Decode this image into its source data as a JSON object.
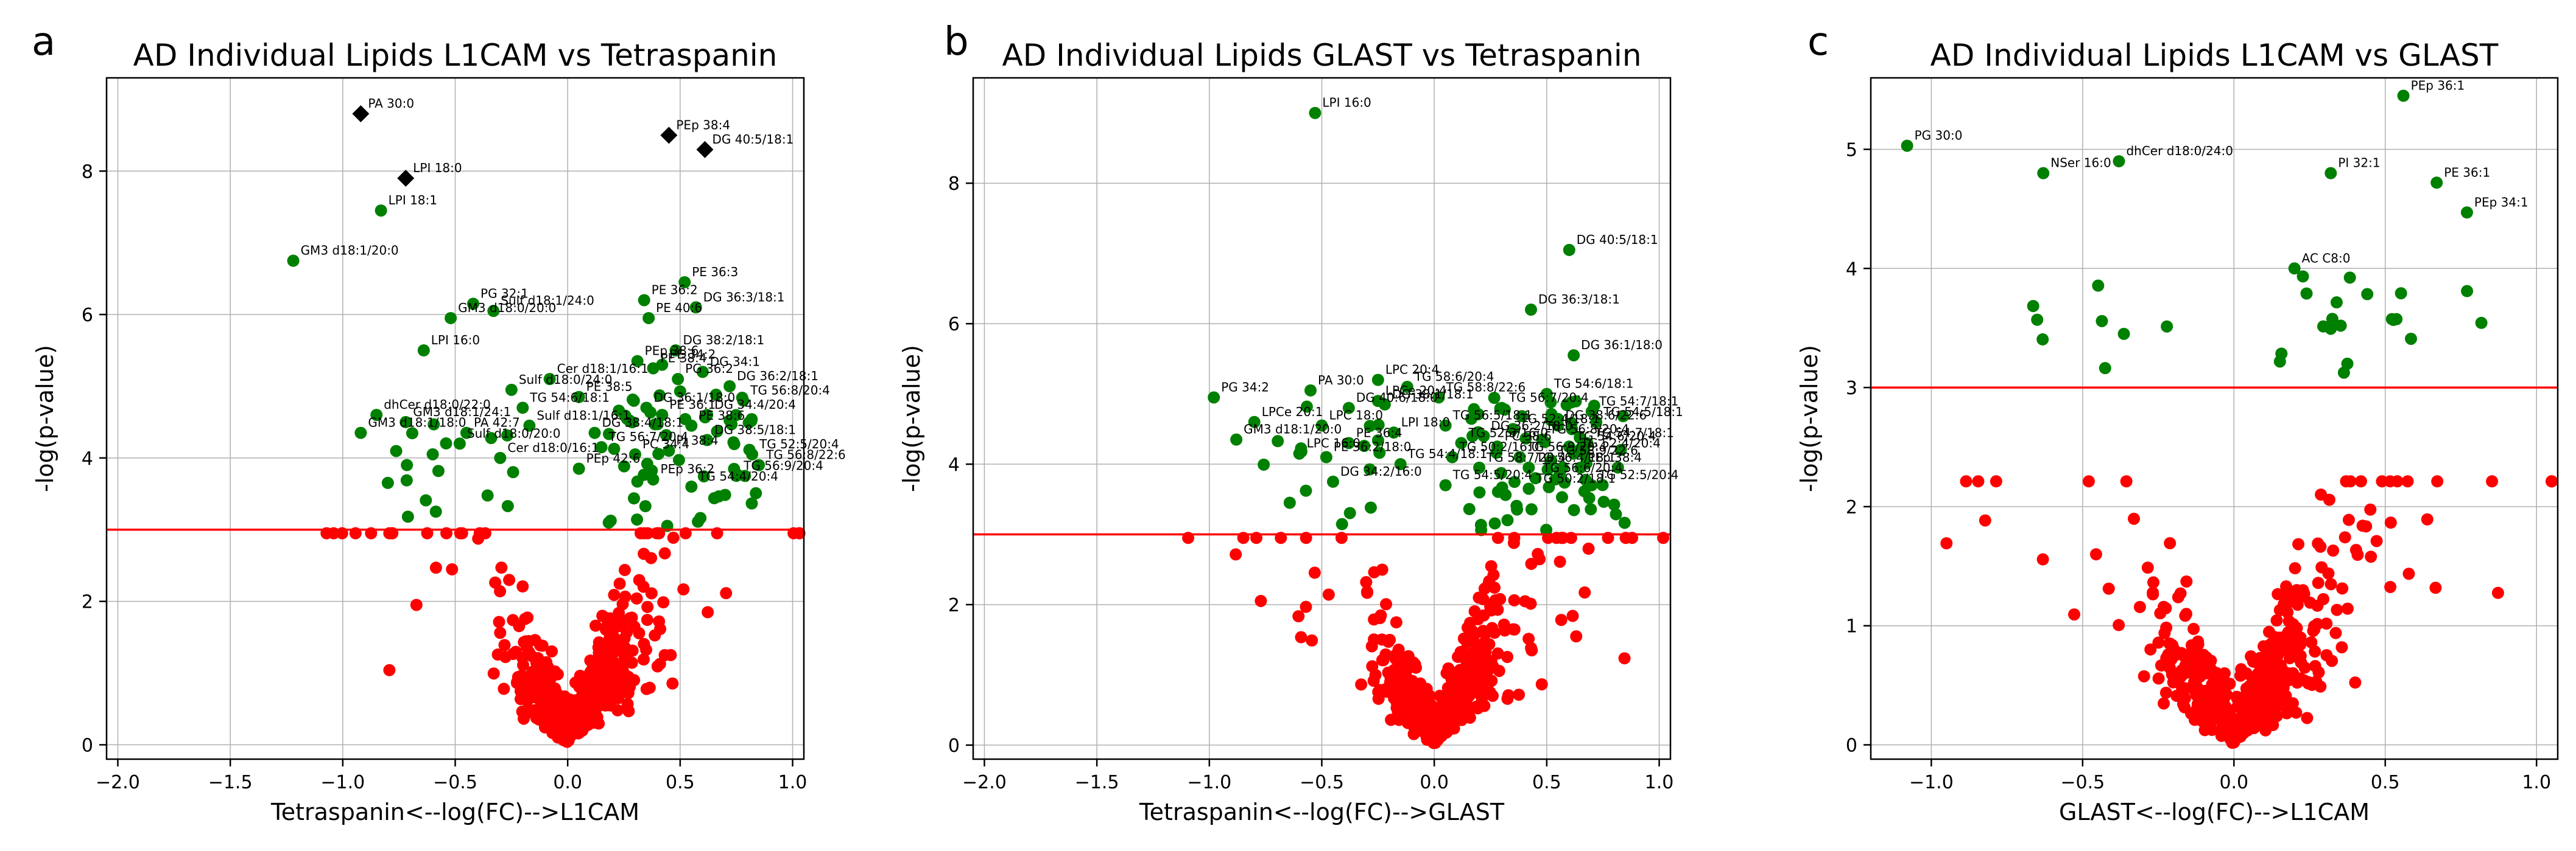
{
  "chart_data": [
    {
      "type": "scatter",
      "panel": "a",
      "title": "AD Individual Lipids L1CAM vs Tetraspanin",
      "xlabel": "Tetraspanin<--log(FC)-->L1CAM",
      "ylabel": "-log(p-value)",
      "xlim": [
        -2.05,
        1.05
      ],
      "ylim": [
        -0.2,
        9.3
      ],
      "xticks": [
        -2.0,
        -1.5,
        -1.0,
        -0.5,
        0.0,
        0.5,
        1.0
      ],
      "xtick_labels": [
        "−2.0",
        "−1.5",
        "−1.0",
        "−0.5",
        "0.0",
        "0.5",
        "1.0"
      ],
      "yticks": [
        0,
        2,
        4,
        6,
        8
      ],
      "ytick_labels": [
        "0",
        "2",
        "4",
        "6",
        "8"
      ],
      "grid": true,
      "threshold": 3.0,
      "colors": {
        "nonsig": "#ff0000",
        "sig": "#008000",
        "top": "#000000",
        "threshold": "#ff0000"
      },
      "seed": 11,
      "nonsig_count": 520,
      "sig_extra_count": 70,
      "labeled_points": [
        {
          "label": "PA 30:0",
          "x": -0.92,
          "y": 8.8,
          "top": true
        },
        {
          "label": "LPI 18:0",
          "x": -0.72,
          "y": 7.9,
          "top": true
        },
        {
          "label": "PEp 38:4",
          "x": 0.45,
          "y": 8.5,
          "top": true
        },
        {
          "label": "DG 40:5/18:1",
          "x": 0.61,
          "y": 8.3,
          "top": true
        },
        {
          "label": "LPI 18:1",
          "x": -0.83,
          "y": 7.45
        },
        {
          "label": "GM3 d18:1/20:0",
          "x": -1.22,
          "y": 6.75
        },
        {
          "label": "PE 36:3",
          "x": 0.52,
          "y": 6.45
        },
        {
          "label": "PG 32:1",
          "x": -0.42,
          "y": 6.15
        },
        {
          "label": "PE 36:2",
          "x": 0.34,
          "y": 6.2
        },
        {
          "label": "Sulf d18:1/24:0",
          "x": -0.33,
          "y": 6.05
        },
        {
          "label": "DG 36:3/18:1",
          "x": 0.57,
          "y": 6.1
        },
        {
          "label": "GM3 d18:0/20:0",
          "x": -0.52,
          "y": 5.95
        },
        {
          "label": "PE 40:6",
          "x": 0.36,
          "y": 5.95
        },
        {
          "label": "LPI 16:0",
          "x": -0.64,
          "y": 5.5
        },
        {
          "label": "DG 38:2/18:1",
          "x": 0.48,
          "y": 5.5
        },
        {
          "label": "PEp 38:6",
          "x": 0.31,
          "y": 5.35
        },
        {
          "label": "PE 38:4",
          "x": 0.38,
          "y": 5.25
        },
        {
          "label": "PE 34:2",
          "x": 0.42,
          "y": 5.3
        },
        {
          "label": "PG 36:2",
          "x": 0.49,
          "y": 5.1
        },
        {
          "label": "DG 34:1",
          "x": 0.6,
          "y": 5.2
        },
        {
          "label": "DG 36:2/18:1",
          "x": 0.72,
          "y": 5.0
        },
        {
          "label": "Cer d18:1/16:1",
          "x": -0.08,
          "y": 5.1
        },
        {
          "label": "TG 56:8/20:4",
          "x": 0.78,
          "y": 4.8
        },
        {
          "label": "PE 38:5",
          "x": 0.05,
          "y": 4.85
        },
        {
          "label": "Sulf d18:0/24:0",
          "x": -0.25,
          "y": 4.95
        },
        {
          "label": "DG 36:1/18:0",
          "x": 0.35,
          "y": 4.7
        },
        {
          "label": "DG 34:4/20:4",
          "x": 0.62,
          "y": 4.6
        },
        {
          "label": "TG 54:6/18:1",
          "x": -0.2,
          "y": 4.7
        },
        {
          "label": "PE 36:1",
          "x": 0.42,
          "y": 4.6
        },
        {
          "label": "dhCer d18:0/22:0",
          "x": -0.85,
          "y": 4.6
        },
        {
          "label": "GM3 d18:1/24:1",
          "x": -0.72,
          "y": 4.5
        },
        {
          "label": "PA 42:7",
          "x": -0.45,
          "y": 4.35
        },
        {
          "label": "Sulf d18:1/16:1",
          "x": -0.17,
          "y": 4.45
        },
        {
          "label": "DG 38:4/18:1",
          "x": 0.12,
          "y": 4.35
        },
        {
          "label": "PE 38:6",
          "x": 0.55,
          "y": 4.45
        },
        {
          "label": "GM3 d18:1/18:0",
          "x": -0.92,
          "y": 4.35
        },
        {
          "label": "TG 56:7/20:4",
          "x": 0.15,
          "y": 4.15
        },
        {
          "label": "DG 38:5/18:1",
          "x": 0.62,
          "y": 4.25
        },
        {
          "label": "PI 38:4",
          "x": 0.45,
          "y": 4.1
        },
        {
          "label": "Sulf d18:0/20:0",
          "x": -0.48,
          "y": 4.2
        },
        {
          "label": "TG 52:5/20:4",
          "x": 0.82,
          "y": 4.05
        },
        {
          "label": "TG 56:8/22:6",
          "x": 0.85,
          "y": 3.9
        },
        {
          "label": "PC 34:4",
          "x": 0.3,
          "y": 4.05
        },
        {
          "label": "Cer d18:0/16:1",
          "x": -0.3,
          "y": 4.0
        },
        {
          "label": "PEp 42:6",
          "x": 0.05,
          "y": 3.85
        },
        {
          "label": "TG 56:9/20:4",
          "x": 0.75,
          "y": 3.75
        },
        {
          "label": "PEp 36:2",
          "x": 0.38,
          "y": 3.7
        },
        {
          "label": "TG 54:4/20:4",
          "x": 0.55,
          "y": 3.6
        }
      ]
    },
    {
      "type": "scatter",
      "panel": "b",
      "title": "AD Individual Lipids GLAST vs Tetraspanin",
      "xlabel": "Tetraspanin<--log(FC)-->GLAST",
      "ylabel": "-log(p-value)",
      "xlim": [
        -2.05,
        1.05
      ],
      "ylim": [
        -0.2,
        9.5
      ],
      "xticks": [
        -2.0,
        -1.5,
        -1.0,
        -0.5,
        0.0,
        0.5,
        1.0
      ],
      "xtick_labels": [
        "−2.0",
        "−1.5",
        "−1.0",
        "−0.5",
        "0.0",
        "0.5",
        "1.0"
      ],
      "yticks": [
        0,
        2,
        4,
        6,
        8
      ],
      "ytick_labels": [
        "0",
        "2",
        "4",
        "6",
        "8"
      ],
      "grid": true,
      "threshold": 3.0,
      "colors": {
        "nonsig": "#ff0000",
        "sig": "#008000",
        "threshold": "#ff0000"
      },
      "seed": 23,
      "nonsig_count": 500,
      "sig_extra_count": 80,
      "labeled_points": [
        {
          "label": "LPI 16:0",
          "x": -0.53,
          "y": 9.0
        },
        {
          "label": "DG 40:5/18:1",
          "x": 0.6,
          "y": 7.05
        },
        {
          "label": "DG 36:3/18:1",
          "x": 0.43,
          "y": 6.2
        },
        {
          "label": "DG 36:1/18:0",
          "x": 0.62,
          "y": 5.55
        },
        {
          "label": "PG 34:2",
          "x": -0.98,
          "y": 4.95
        },
        {
          "label": "PA 30:0",
          "x": -0.55,
          "y": 5.05
        },
        {
          "label": "LPC 20:4",
          "x": -0.25,
          "y": 5.2
        },
        {
          "label": "TG 58:6/20:4",
          "x": -0.12,
          "y": 5.1
        },
        {
          "label": "TG 54:6/18:1",
          "x": 0.5,
          "y": 5.0
        },
        {
          "label": "LPCe 20:4",
          "x": -0.25,
          "y": 4.9
        },
        {
          "label": "TG 58:8/22:6",
          "x": 0.02,
          "y": 4.95
        },
        {
          "label": "DG 38:1/18:1",
          "x": -0.22,
          "y": 4.85
        },
        {
          "label": "DG 40:6/18:0",
          "x": -0.38,
          "y": 4.8
        },
        {
          "label": "TG 56:7/20:4",
          "x": 0.3,
          "y": 4.8
        },
        {
          "label": "TG 54:7/18:1",
          "x": 0.7,
          "y": 4.75
        },
        {
          "label": "LPCe 20:1",
          "x": -0.8,
          "y": 4.6
        },
        {
          "label": "LPC 18:0",
          "x": -0.5,
          "y": 4.55
        },
        {
          "label": "TG 56:5/18:1",
          "x": 0.05,
          "y": 4.55
        },
        {
          "label": "TG 52:4/18:1",
          "x": 0.35,
          "y": 4.5
        },
        {
          "label": "DG 38:6/22:6",
          "x": 0.55,
          "y": 4.55
        },
        {
          "label": "TG 54:5/18:1",
          "x": 0.72,
          "y": 4.6
        },
        {
          "label": "LPI 18:0",
          "x": -0.18,
          "y": 4.45
        },
        {
          "label": "DG 36:2/18:0",
          "x": 0.22,
          "y": 4.4
        },
        {
          "label": "TG 56:8/20:4",
          "x": 0.48,
          "y": 4.35
        },
        {
          "label": "GM3 d18:1/20:0",
          "x": -0.88,
          "y": 4.35
        },
        {
          "label": "PE 36:4",
          "x": -0.38,
          "y": 4.3
        },
        {
          "label": "TG 52:3/16:0",
          "x": 0.12,
          "y": 4.3
        },
        {
          "label": "PC 38:6",
          "x": 0.28,
          "y": 4.25
        },
        {
          "label": "TG 54:6/20:4",
          "x": 0.6,
          "y": 4.25
        },
        {
          "label": "TG 54:7/18:1",
          "x": 0.68,
          "y": 4.3
        },
        {
          "label": "LPC 16:0",
          "x": -0.6,
          "y": 4.15
        },
        {
          "label": "PE 36:2/18:0",
          "x": -0.48,
          "y": 4.1
        },
        {
          "label": "TG 50:2/16:0",
          "x": 0.08,
          "y": 4.1
        },
        {
          "label": "TG 56:9/20:4",
          "x": 0.38,
          "y": 4.1
        },
        {
          "label": "TG 58:9/22:6",
          "x": 0.52,
          "y": 4.05
        },
        {
          "label": "TG 52:4/20:4",
          "x": 0.62,
          "y": 4.15
        },
        {
          "label": "TG 54:4/18:1",
          "x": -0.15,
          "y": 4.0
        },
        {
          "label": "TG 58:7/20:4",
          "x": 0.2,
          "y": 3.95
        },
        {
          "label": "TG 56:4/18:1",
          "x": 0.42,
          "y": 3.95
        },
        {
          "label": "PEp 38:4",
          "x": 0.65,
          "y": 3.95
        },
        {
          "label": "DG 34:2/16:0",
          "x": -0.45,
          "y": 3.75
        },
        {
          "label": "TG 56:6/20:4",
          "x": 0.45,
          "y": 3.8
        },
        {
          "label": "TG 54:5/20:4",
          "x": 0.05,
          "y": 3.7
        },
        {
          "label": "TG 52:5/20:4",
          "x": 0.7,
          "y": 3.7
        },
        {
          "label": "TG 50:2/18:1",
          "x": 0.42,
          "y": 3.65
        }
      ]
    },
    {
      "type": "scatter",
      "panel": "c",
      "title": "AD Individual Lipids L1CAM vs GLAST",
      "xlabel": "GLAST<--log(FC)-->L1CAM",
      "ylabel": "-log(p-value)",
      "xlim": [
        -1.2,
        1.07
      ],
      "ylim": [
        -0.12,
        5.6
      ],
      "xticks": [
        -1.0,
        -0.5,
        0.0,
        0.5,
        1.0
      ],
      "xtick_labels": [
        "−1.0",
        "−0.5",
        "0.0",
        "0.5",
        "1.0"
      ],
      "yticks": [
        0,
        1,
        2,
        3,
        4,
        5
      ],
      "ytick_labels": [
        "0",
        "1",
        "2",
        "3",
        "4",
        "5"
      ],
      "grid": true,
      "threshold": 3.0,
      "colors": {
        "nonsig": "#ff0000",
        "sig": "#008000",
        "threshold": "#ff0000"
      },
      "seed": 37,
      "nonsig_count": 520,
      "sig_extra_count": 28,
      "labeled_points": [
        {
          "label": "PG 30:0",
          "x": -1.08,
          "y": 5.03
        },
        {
          "label": "NSer 16:0",
          "x": -0.63,
          "y": 4.8
        },
        {
          "label": "dhCer d18:0/24:0",
          "x": -0.38,
          "y": 4.9
        },
        {
          "label": "PEp 36:1",
          "x": 0.56,
          "y": 5.45
        },
        {
          "label": "PI 32:1",
          "x": 0.32,
          "y": 4.8
        },
        {
          "label": "PE 36:1",
          "x": 0.67,
          "y": 4.72
        },
        {
          "label": "PEp 34:1",
          "x": 0.77,
          "y": 4.47
        },
        {
          "label": "AC C8:0",
          "x": 0.2,
          "y": 4.0
        }
      ]
    }
  ],
  "panel_letters": {
    "a": "a",
    "b": "b",
    "c": "c"
  }
}
